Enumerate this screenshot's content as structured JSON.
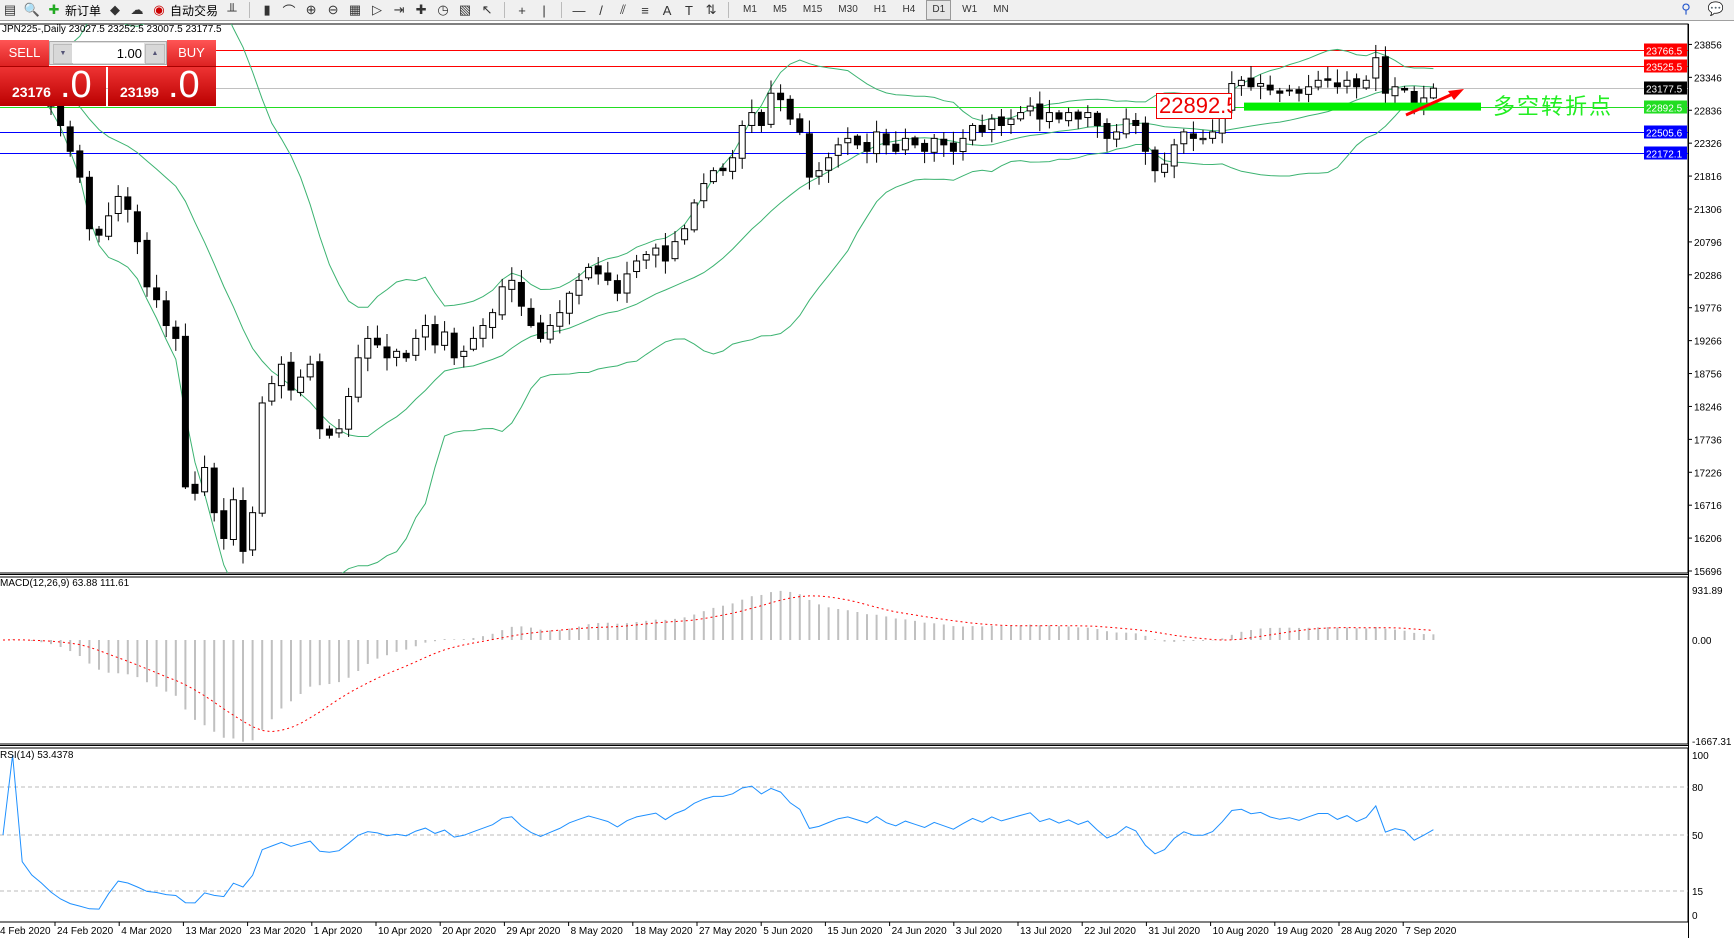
{
  "toolbar": {
    "new_order": "新订单",
    "auto_trading": "自动交易",
    "timeframes": [
      "M1",
      "M5",
      "M15",
      "M30",
      "H1",
      "H4",
      "D1",
      "W1",
      "MN"
    ],
    "active_timeframe": "D1",
    "icons": [
      "chart-window-icon",
      "zoom-window-icon",
      "new-order-icon",
      "market-watch-icon",
      "signals-icon",
      "auto-trading-icon",
      "bar-chart-icon",
      "candlestick-icon",
      "line-chart-icon",
      "zoom-in-icon",
      "zoom-out-icon",
      "tile-windows-icon",
      "auto-scroll-icon",
      "chart-shift-icon",
      "indicators-icon",
      "periods-icon",
      "templates-icon",
      "cursor-icon",
      "crosshair-icon",
      "vertical-line-icon",
      "horizontal-line-icon",
      "trendline-icon",
      "equidistant-channel-icon",
      "fibonacci-icon",
      "text-icon",
      "text-label-icon",
      "arrows-icon",
      "search-icon",
      "chat-icon"
    ]
  },
  "chart": {
    "title": "JPN225-,Daily  23027.5 23252.5 23007.5 23177.5",
    "annotation_text": "多空转折点",
    "annotation_price_label": "22892.5"
  },
  "trade_panel": {
    "sell_label": "SELL",
    "buy_label": "BUY",
    "lot_value": "1.00",
    "sell_price_main": "23176",
    "sell_price_big": ".0",
    "buy_price_main": "23199",
    "buy_price_big": ".0"
  },
  "colors": {
    "bull_body": "#ffffff",
    "bear_body": "#000000",
    "bands": "#3cb371",
    "resistance": "#ff0000",
    "support": "#0000ff",
    "pivot": "#22dd22",
    "bid_line": "#c0c0c0",
    "macd_hist": "#c0c0c0",
    "macd_signal": "#ff0000",
    "rsi_line": "#1e90ff",
    "arrow": "#ff0000"
  },
  "chart_data": {
    "type": "candlestick",
    "symbol": "JPN225-",
    "timeframe": "Daily",
    "last_ohlc": {
      "open": 23027.5,
      "high": 23252.5,
      "low": 23007.5,
      "close": 23177.5
    },
    "closes": [
      23400,
      23500,
      23300,
      23200,
      23100,
      22900,
      22600,
      22200,
      21800,
      21000,
      20900,
      21200,
      21500,
      21300,
      20800,
      20100,
      19900,
      19500,
      19300,
      17000,
      16900,
      17300,
      16600,
      16200,
      16800,
      16000,
      16600,
      18300,
      18600,
      18900,
      18500,
      18700,
      18900,
      17900,
      17800,
      17900,
      18400,
      19000,
      19300,
      19200,
      19000,
      19100,
      19000,
      19300,
      19500,
      19200,
      19400,
      19000,
      19100,
      19300,
      19500,
      19700,
      20100,
      20200,
      19800,
      19500,
      19300,
      19500,
      19700,
      20000,
      20200,
      20400,
      20300,
      20200,
      20000,
      20300,
      20500,
      20600,
      20700,
      20500,
      20800,
      21000,
      21400,
      21700,
      21900,
      21900,
      22100,
      22600,
      22800,
      22600,
      23100,
      23000,
      22700,
      22500,
      21800,
      21900,
      22100,
      22300,
      22400,
      22300,
      22200,
      22500,
      22300,
      22200,
      22400,
      22300,
      22200,
      22400,
      22300,
      22200,
      22400,
      22600,
      22500,
      22700,
      22600,
      22700,
      22800,
      22900,
      22700,
      22800,
      22700,
      22800,
      22700,
      22800,
      22600,
      22400,
      22500,
      22700,
      22600,
      22200,
      21900,
      22000,
      22300,
      22500,
      22400,
      22400,
      22500,
      22800,
      23250,
      23300,
      23200,
      23250,
      23150,
      23100,
      23150,
      23100,
      23200,
      23300,
      23300,
      23200,
      23300,
      23200,
      23300,
      23650,
      23100,
      23200,
      23150,
      22900,
      23027.5,
      23177.5
    ],
    "price_axis": {
      "ticks": [
        15696.0,
        16206.0,
        16716.0,
        17226.0,
        17736.0,
        18246.0,
        18756.0,
        19266.0,
        19776.0,
        20286.0,
        20796.0,
        21306.0,
        21816.0,
        22326.0,
        22836.0,
        23346.0,
        23856.0
      ],
      "range": [
        15696.0,
        23856.0
      ]
    },
    "horizontal_lines": [
      {
        "price": 23766.5,
        "label": "23766.5",
        "kind": "resistance"
      },
      {
        "price": 23525.5,
        "label": "23525.5",
        "kind": "resistance"
      },
      {
        "price": 23177.5,
        "label": "23177.5",
        "kind": "bid"
      },
      {
        "price": 22892.5,
        "label": "22892.5",
        "kind": "pivot"
      },
      {
        "price": 22505.6,
        "label": "22505.6",
        "kind": "support"
      },
      {
        "price": 22172.1,
        "label": "22172.1",
        "kind": "support"
      }
    ],
    "bollinger": {
      "period": 20,
      "deviation": 2
    },
    "macd": {
      "title": "MACD(12,26,9) 63.88 111.61",
      "fast": 12,
      "slow": 26,
      "signal": 9,
      "axis": [
        "931.89",
        "0.00",
        "-1667.31"
      ],
      "range": [
        -1667.31,
        931.89
      ]
    },
    "rsi": {
      "title": "RSI(14) 53.4378",
      "period": 14,
      "axis": [
        "100",
        "80",
        "50",
        "15",
        "0"
      ],
      "levels": [
        80,
        50,
        15
      ]
    },
    "date_labels": [
      "4 Feb 2020",
      "24 Feb 2020",
      "4 Mar 2020",
      "13 Mar 2020",
      "23 Mar 2020",
      "1 Apr 2020",
      "10 Apr 2020",
      "20 Apr 2020",
      "29 Apr 2020",
      "8 May 2020",
      "18 May 2020",
      "27 May 2020",
      "5 Jun 2020",
      "15 Jun 2020",
      "24 Jun 2020",
      "3 Jul 2020",
      "13 Jul 2020",
      "22 Jul 2020",
      "31 Jul 2020",
      "10 Aug 2020",
      "19 Aug 2020",
      "28 Aug 2020",
      "7 Sep 2020"
    ]
  }
}
